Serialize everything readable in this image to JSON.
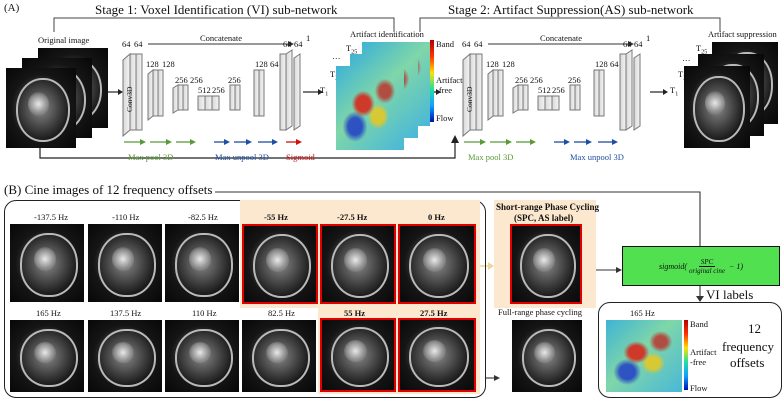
{
  "panel_a": {
    "tag": "(A)",
    "stage1_title": "Stage 1: Voxel Identification (VI) sub-network",
    "stage2_title": "Stage 2: Artifact Suppression(AS) sub-network",
    "original_image_label": "Original image",
    "concatenate": "Concatenate",
    "conv3d": "Conv3D",
    "ch": {
      "c64a": "64",
      "c64b": "64",
      "c128a": "128",
      "c128b": "128",
      "c256a": "256",
      "c256b": "256",
      "c512": "512",
      "c256c": "256",
      "c256d": "256",
      "c128c": "128",
      "c128d": "128",
      "c64c": "64",
      "c64d": "64",
      "c64e": "64",
      "c1": "1"
    },
    "maxpool": "Max pool 3D",
    "maxunpool": "Max unpool 3D",
    "sigmoid": "Sigmoid",
    "artifact_identification": "Artifact identification",
    "artifact_suppression": "Artifact suppression",
    "t25": "T",
    "t25_sub": "25",
    "t2": "T",
    "t2_sub": "2",
    "t1": "T",
    "t1_sub": "1",
    "dots": "…",
    "band": "Band",
    "artifact_free": "Artifact\n-free",
    "flow": "Flow",
    "colors": {
      "maxpool_arrow": "#5a9a3a",
      "maxunpool_arrow": "#1f4fa0",
      "sigmoid_arrow": "#d01010"
    }
  },
  "panel_b": {
    "title": "(B) Cine images of 12 frequency offsets",
    "row1": [
      "-137.5 Hz",
      "-110 Hz",
      "-82.5 Hz",
      "-55 Hz",
      "-27.5 Hz",
      "0 Hz"
    ],
    "row2": [
      "165 Hz",
      "137.5 Hz",
      "110 Hz",
      "82.5 Hz",
      "55 Hz",
      "27.5 Hz"
    ],
    "spc_title": "Short-range Phase Cycling",
    "spc_sub": "(SPC, AS label)",
    "frpc": "Full-range phase cycling",
    "formula_prefix": "sigmoid(",
    "formula_num": "SPC",
    "formula_den": "original cine",
    "formula_suffix": " − 1)",
    "vi_labels": "VI labels",
    "vi_freq": "165 Hz",
    "twelve": "12",
    "frequency": "frequency",
    "offsets": "offsets",
    "band": "Band",
    "artifact_free": "Artifact\n-free",
    "flow": "Flow"
  }
}
